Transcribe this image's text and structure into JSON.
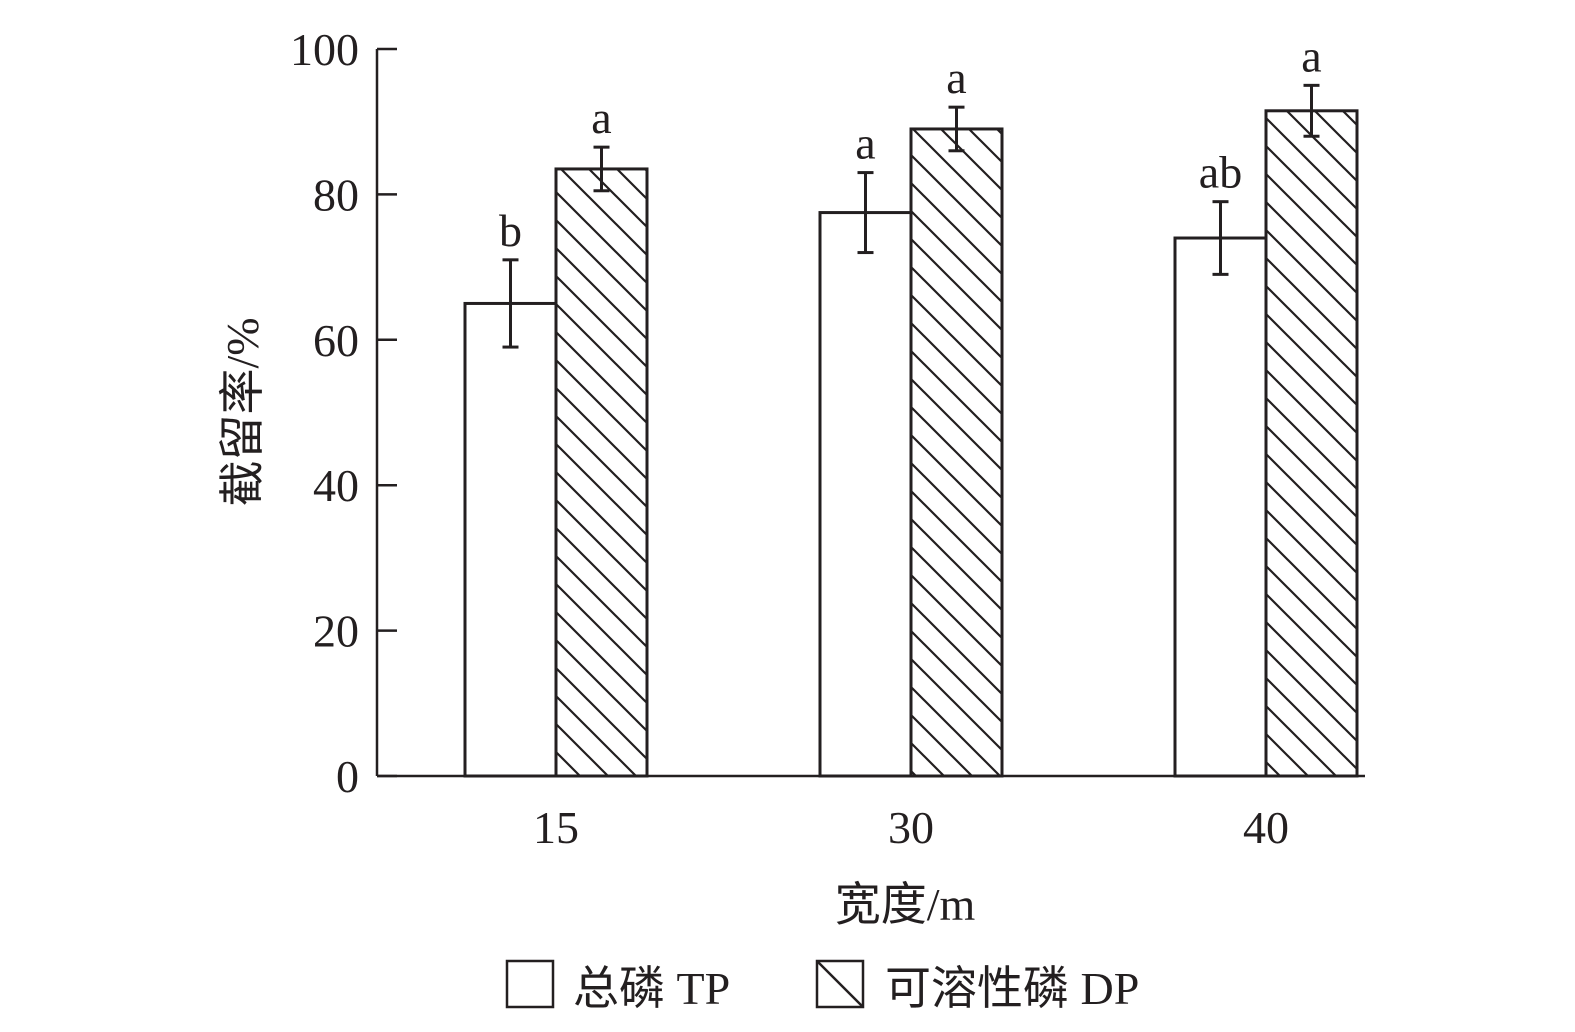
{
  "chart_data": {
    "type": "bar",
    "xlabel": "宽度/m",
    "ylabel": "截留率/%",
    "ylim": [
      0,
      100
    ],
    "yticks": [
      "0",
      "20",
      "40",
      "60",
      "80",
      "100"
    ],
    "categories": [
      "15",
      "30",
      "40"
    ],
    "grid": false,
    "legend_position": "bottom",
    "series": [
      {
        "name": "总磷 TP",
        "pattern": "blank",
        "values": [
          65,
          77.5,
          74
        ],
        "errors": [
          6,
          5.5,
          5
        ],
        "labels": [
          "b",
          "a",
          "ab"
        ]
      },
      {
        "name": "可溶性磷 DP",
        "pattern": "hatched",
        "values": [
          83.5,
          89,
          91.5
        ],
        "errors": [
          3,
          3,
          3.5
        ],
        "labels": [
          "a",
          "a",
          "a"
        ]
      }
    ],
    "colors": {
      "stroke": "#231f20",
      "fill": "#ffffff"
    }
  }
}
